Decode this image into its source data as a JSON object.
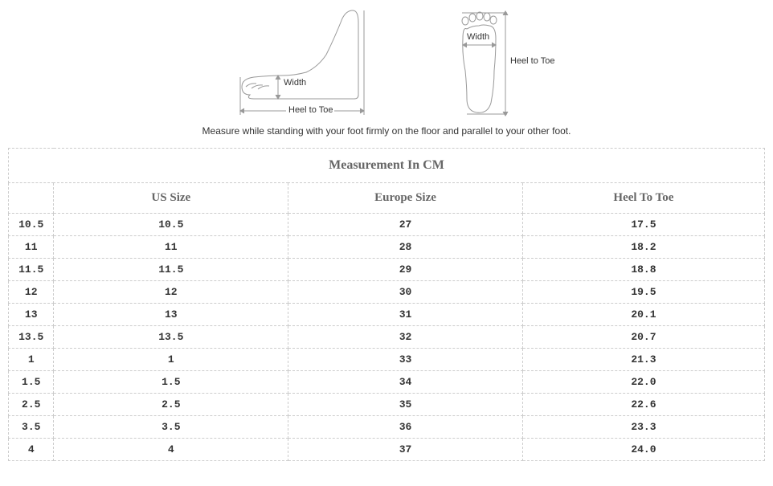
{
  "diagram": {
    "side_width_label": "Width",
    "side_heel_label": "Heel to Toe",
    "top_width_label": "Width",
    "top_heel_label": "Heel to Toe",
    "stroke_color": "#999999",
    "label_color": "#333333"
  },
  "instruction_text": "Measure while standing with your foot firmly on the floor and parallel to your other foot.",
  "table": {
    "title": "Measurement In CM",
    "columns": [
      "",
      "US Size",
      "Europe Size",
      "Heel To Toe"
    ],
    "rows": [
      [
        "10.5",
        "10.5",
        "27",
        "17.5"
      ],
      [
        "11",
        "11",
        "28",
        "18.2"
      ],
      [
        "11.5",
        "11.5",
        "29",
        "18.8"
      ],
      [
        "12",
        "12",
        "30",
        "19.5"
      ],
      [
        "13",
        "13",
        "31",
        "20.1"
      ],
      [
        "13.5",
        "13.5",
        "32",
        "20.7"
      ],
      [
        "1",
        "1",
        "33",
        "21.3"
      ],
      [
        "1.5",
        "1.5",
        "34",
        "22.0"
      ],
      [
        "2.5",
        "2.5",
        "35",
        "22.6"
      ],
      [
        "3.5",
        "3.5",
        "36",
        "23.3"
      ],
      [
        "4",
        "4",
        "37",
        "24.0"
      ]
    ],
    "border_color": "#cccccc",
    "header_text_color": "#666666",
    "cell_text_color": "#333333",
    "col_widths_pct": [
      6,
      31,
      31,
      32
    ]
  }
}
